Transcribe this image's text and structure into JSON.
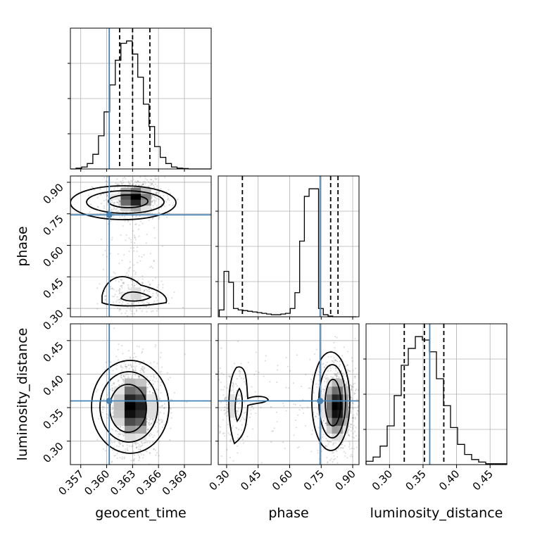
{
  "chart_data": {
    "type": "corner",
    "parameters": [
      "geocent_time",
      "phase",
      "luminosity_distance"
    ],
    "truth": {
      "geocent_time": 0.3603,
      "phase": 0.745,
      "luminosity_distance": 0.36
    },
    "truth_color": "#4682b4",
    "quantiles": {
      "geocent_time": [
        0.3615,
        0.363,
        0.365
      ],
      "phase": [
        0.375,
        0.795,
        0.83
      ],
      "luminosity_distance": [
        0.322,
        0.352,
        0.381
      ]
    },
    "ranges": {
      "geocent_time": [
        0.3558,
        0.3721
      ],
      "phase": [
        0.26,
        0.93
      ],
      "luminosity_distance": [
        0.265,
        0.475
      ]
    },
    "ticks": {
      "geocent_time": {
        "values": [
          0.357,
          0.36,
          0.363,
          0.366,
          0.369
        ],
        "labels": [
          "0.357",
          "0.360",
          "0.363",
          "0.366",
          "0.369"
        ]
      },
      "phase": {
        "values": [
          0.3,
          0.45,
          0.6,
          0.75,
          0.9
        ],
        "labels": [
          "0.30",
          "0.45",
          "0.60",
          "0.75",
          "0.90"
        ]
      },
      "luminosity_distance": {
        "values": [
          0.3,
          0.35,
          0.4,
          0.45
        ],
        "labels": [
          "0.30",
          "0.35",
          "0.40",
          "0.45"
        ]
      }
    },
    "histograms": {
      "geocent_time": {
        "edges": [
          0.3558,
          0.35645,
          0.3571,
          0.35775,
          0.3584,
          0.35905,
          0.3597,
          0.36035,
          0.361,
          0.36165,
          0.3623,
          0.36295,
          0.3636,
          0.36425,
          0.3649,
          0.36555,
          0.3662,
          0.36685,
          0.3675,
          0.36815,
          0.3688,
          0.36945,
          0.3701,
          0.37075,
          0.3714,
          0.37205
        ],
        "counts": [
          0,
          2,
          5,
          14,
          38,
          86,
          148,
          218,
          282,
          326,
          332,
          298,
          238,
          168,
          110,
          58,
          30,
          14,
          5,
          2,
          1,
          0,
          0,
          0,
          0
        ]
      },
      "phase": {
        "edges": [
          0.265,
          0.2875,
          0.31,
          0.3325,
          0.355,
          0.3775,
          0.4,
          0.4225,
          0.445,
          0.4675,
          0.49,
          0.5125,
          0.535,
          0.5575,
          0.58,
          0.6025,
          0.625,
          0.6475,
          0.67,
          0.6925,
          0.715,
          0.7375,
          0.76,
          0.7825,
          0.805,
          0.8275,
          0.85,
          0.8725,
          0.895,
          0.9175
        ],
        "counts": [
          10,
          66,
          50,
          12,
          10,
          9,
          8,
          7,
          6,
          5,
          4,
          3,
          3,
          4,
          5,
          12,
          35,
          110,
          175,
          186,
          186,
          12,
          3,
          1,
          0,
          0,
          0,
          0,
          0
        ]
      },
      "luminosity_distance": {
        "edges": [
          0.265,
          0.2755,
          0.286,
          0.2965,
          0.307,
          0.3175,
          0.328,
          0.3385,
          0.349,
          0.3595,
          0.37,
          0.3805,
          0.391,
          0.4015,
          0.412,
          0.4225,
          0.433,
          0.4435,
          0.454,
          0.4645,
          0.475
        ],
        "counts": [
          4,
          9,
          22,
          46,
          82,
          118,
          138,
          152,
          148,
          134,
          102,
          70,
          44,
          24,
          12,
          6,
          3,
          1,
          1,
          1
        ]
      }
    },
    "grid": true,
    "xlabels": [
      "geocent_time",
      "phase",
      "luminosity_distance"
    ],
    "ylabels": [
      "",
      "phase",
      "luminosity_distance"
    ]
  }
}
